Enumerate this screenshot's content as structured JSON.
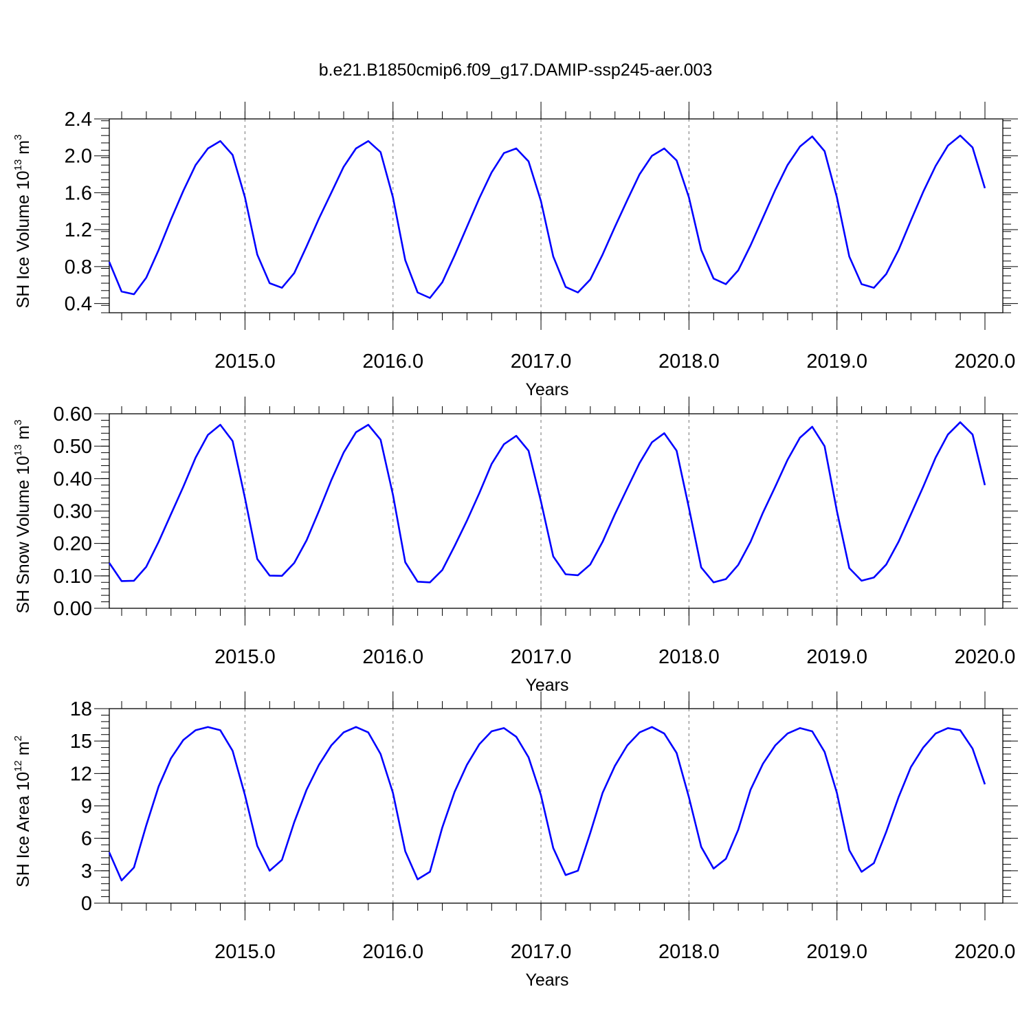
{
  "title": "b.e21.B1850cmip6.f09_g17.DAMIP-ssp245-aer.003",
  "line_color": "#0000ff",
  "chart_data": [
    {
      "type": "line",
      "ylabel": "SH Ice Volume 10",
      "ylabel_exp": "13",
      "ylabel_unit": " m",
      "ylabel_unit_exp": "3",
      "xlabel": "Years",
      "xlim": [
        2014.083,
        2020.0
      ],
      "ylim": [
        0.3,
        2.4
      ],
      "xticks": [
        2015.0,
        2016.0,
        2017.0,
        2018.0,
        2019.0,
        2020.0
      ],
      "xtick_labels": [
        "2015.0",
        "2016.0",
        "2017.0",
        "2018.0",
        "2019.0",
        "2020.0"
      ],
      "yticks": [
        0.4,
        0.8,
        1.2,
        1.6,
        2.0,
        2.4
      ],
      "ytick_labels": [
        "0.4",
        "0.8",
        "1.2",
        "1.6",
        "2.0",
        "2.4"
      ],
      "series": [
        {
          "x_start": 2014.083,
          "x_step": 0.0833333,
          "values": [
            0.85,
            0.53,
            0.5,
            0.68,
            0.98,
            1.31,
            1.62,
            1.9,
            2.08,
            2.16,
            2.01,
            1.55,
            0.93,
            0.62,
            0.57,
            0.73,
            1.02,
            1.32,
            1.6,
            1.88,
            2.08,
            2.16,
            2.04,
            1.55,
            0.87,
            0.52,
            0.46,
            0.63,
            0.92,
            1.23,
            1.54,
            1.82,
            2.03,
            2.08,
            1.94,
            1.51,
            0.91,
            0.58,
            0.52,
            0.66,
            0.93,
            1.23,
            1.52,
            1.8,
            2.0,
            2.08,
            1.95,
            1.55,
            0.98,
            0.67,
            0.61,
            0.76,
            1.03,
            1.33,
            1.63,
            1.9,
            2.1,
            2.21,
            2.05,
            1.55,
            0.91,
            0.61,
            0.57,
            0.72,
            0.98,
            1.3,
            1.61,
            1.89,
            2.11,
            2.22,
            2.09,
            1.65
          ]
        }
      ]
    },
    {
      "type": "line",
      "ylabel": "SH Snow Volume 10",
      "ylabel_exp": "13",
      "ylabel_unit": " m",
      "ylabel_unit_exp": "3",
      "xlabel": "Years",
      "xlim": [
        2014.083,
        2020.0
      ],
      "ylim": [
        0.0,
        0.6
      ],
      "xticks": [
        2015.0,
        2016.0,
        2017.0,
        2018.0,
        2019.0,
        2020.0
      ],
      "xtick_labels": [
        "2015.0",
        "2016.0",
        "2017.0",
        "2018.0",
        "2019.0",
        "2020.0"
      ],
      "yticks": [
        0.0,
        0.1,
        0.2,
        0.3,
        0.4,
        0.5,
        0.6
      ],
      "ytick_labels": [
        "0.00",
        "0.10",
        "0.20",
        "0.30",
        "0.40",
        "0.50",
        "0.60"
      ],
      "series": [
        {
          "x_start": 2014.083,
          "x_step": 0.0833333,
          "values": [
            0.14,
            0.084,
            0.085,
            0.128,
            0.205,
            0.29,
            0.375,
            0.465,
            0.535,
            0.566,
            0.516,
            0.34,
            0.152,
            0.101,
            0.1,
            0.14,
            0.21,
            0.3,
            0.395,
            0.48,
            0.543,
            0.566,
            0.52,
            0.35,
            0.142,
            0.082,
            0.08,
            0.118,
            0.192,
            0.27,
            0.355,
            0.445,
            0.506,
            0.532,
            0.486,
            0.33,
            0.16,
            0.105,
            0.102,
            0.135,
            0.205,
            0.29,
            0.37,
            0.448,
            0.512,
            0.54,
            0.486,
            0.31,
            0.126,
            0.08,
            0.09,
            0.134,
            0.205,
            0.295,
            0.375,
            0.458,
            0.526,
            0.56,
            0.5,
            0.3,
            0.124,
            0.085,
            0.095,
            0.135,
            0.205,
            0.29,
            0.375,
            0.465,
            0.536,
            0.574,
            0.536,
            0.38
          ]
        }
      ]
    },
    {
      "type": "line",
      "ylabel": "SH Ice Area 10",
      "ylabel_exp": "12",
      "ylabel_unit": " m",
      "ylabel_unit_exp": "2",
      "xlabel": "Years",
      "xlim": [
        2014.083,
        2020.0
      ],
      "ylim": [
        0,
        18
      ],
      "xticks": [
        2015.0,
        2016.0,
        2017.0,
        2018.0,
        2019.0,
        2020.0
      ],
      "xtick_labels": [
        "2015.0",
        "2016.0",
        "2017.0",
        "2018.0",
        "2019.0",
        "2020.0"
      ],
      "yticks": [
        0,
        3,
        6,
        9,
        12,
        15,
        18
      ],
      "ytick_labels": [
        "0",
        "3",
        "6",
        "9",
        "12",
        "15",
        "18"
      ],
      "series": [
        {
          "x_start": 2014.083,
          "x_step": 0.0833333,
          "values": [
            4.7,
            2.1,
            3.3,
            7.2,
            10.8,
            13.4,
            15.1,
            16.0,
            16.3,
            16.0,
            14.1,
            10.0,
            5.3,
            3.0,
            4.0,
            7.5,
            10.5,
            12.8,
            14.6,
            15.8,
            16.3,
            15.8,
            13.8,
            10.2,
            4.8,
            2.2,
            2.9,
            7.0,
            10.3,
            12.8,
            14.7,
            15.9,
            16.2,
            15.4,
            13.5,
            10.0,
            5.1,
            2.6,
            3.0,
            6.5,
            10.2,
            12.7,
            14.6,
            15.8,
            16.3,
            15.7,
            13.9,
            9.8,
            5.2,
            3.2,
            4.1,
            6.8,
            10.5,
            12.9,
            14.6,
            15.7,
            16.2,
            15.9,
            14.0,
            10.2,
            4.9,
            2.9,
            3.7,
            6.6,
            9.8,
            12.6,
            14.4,
            15.7,
            16.2,
            16.0,
            14.3,
            11.0
          ]
        }
      ]
    }
  ]
}
